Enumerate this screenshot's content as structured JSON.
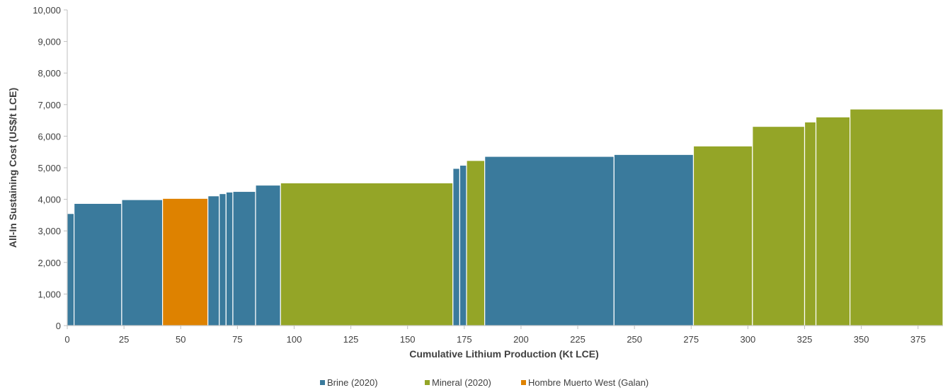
{
  "chart_data": {
    "type": "bar",
    "subtype": "cost-curve",
    "title": "",
    "xlabel": "Cumulative Lithium Production (Kt LCE)",
    "ylabel": "All-In Sustaining Cost (US$/t LCE)",
    "xlim": [
      0,
      386
    ],
    "ylim": [
      0,
      10000
    ],
    "x_ticks": [
      0,
      25,
      50,
      75,
      100,
      125,
      150,
      175,
      200,
      225,
      250,
      275,
      300,
      325,
      350,
      375
    ],
    "x_tick_labels": [
      "0",
      "25",
      "50",
      "75",
      "100",
      "125",
      "150",
      "175",
      "200",
      "225",
      "250",
      "275",
      "300",
      "325",
      "350",
      "375"
    ],
    "y_ticks": [
      0,
      1000,
      2000,
      3000,
      4000,
      5000,
      6000,
      7000,
      8000,
      9000,
      10000
    ],
    "y_tick_labels": [
      "0",
      "1,000",
      "2,000",
      "3,000",
      "4,000",
      "5,000",
      "6,000",
      "7,000",
      "8,000",
      "9,000",
      "10,000"
    ],
    "grid": false,
    "legend_position": "bottom-center",
    "series": [
      {
        "name": "Brine (2020)",
        "color": "#3a7a9c"
      },
      {
        "name": "Mineral (2020)",
        "color": "#94a527"
      },
      {
        "name": "Hombre Muerto West (Galan)",
        "color": "#de8200"
      }
    ],
    "bars": [
      {
        "series": "Brine (2020)",
        "x_start": 0,
        "x_end": 3,
        "value": 3550
      },
      {
        "series": "Brine (2020)",
        "x_start": 3,
        "x_end": 24,
        "value": 3870
      },
      {
        "series": "Brine (2020)",
        "x_start": 24,
        "x_end": 42,
        "value": 3990
      },
      {
        "series": "Hombre Muerto West (Galan)",
        "x_start": 42,
        "x_end": 62,
        "value": 4030
      },
      {
        "series": "Brine (2020)",
        "x_start": 62,
        "x_end": 67,
        "value": 4110
      },
      {
        "series": "Brine (2020)",
        "x_start": 67,
        "x_end": 70,
        "value": 4180
      },
      {
        "series": "Brine (2020)",
        "x_start": 70,
        "x_end": 73,
        "value": 4230
      },
      {
        "series": "Brine (2020)",
        "x_start": 73,
        "x_end": 83,
        "value": 4250
      },
      {
        "series": "Brine (2020)",
        "x_start": 83,
        "x_end": 94,
        "value": 4450
      },
      {
        "series": "Mineral (2020)",
        "x_start": 94,
        "x_end": 170,
        "value": 4520
      },
      {
        "series": "Brine (2020)",
        "x_start": 170,
        "x_end": 173,
        "value": 4980
      },
      {
        "series": "Brine (2020)",
        "x_start": 173,
        "x_end": 176,
        "value": 5080
      },
      {
        "series": "Mineral (2020)",
        "x_start": 176,
        "x_end": 184,
        "value": 5230
      },
      {
        "series": "Brine (2020)",
        "x_start": 184,
        "x_end": 241,
        "value": 5360
      },
      {
        "series": "Brine (2020)",
        "x_start": 241,
        "x_end": 276,
        "value": 5420
      },
      {
        "series": "Mineral (2020)",
        "x_start": 276,
        "x_end": 302,
        "value": 5690
      },
      {
        "series": "Mineral (2020)",
        "x_start": 302,
        "x_end": 325,
        "value": 6310
      },
      {
        "series": "Mineral (2020)",
        "x_start": 325,
        "x_end": 330,
        "value": 6450
      },
      {
        "series": "Mineral (2020)",
        "x_start": 330,
        "x_end": 345,
        "value": 6610
      },
      {
        "series": "Mineral (2020)",
        "x_start": 345,
        "x_end": 386,
        "value": 6860
      }
    ]
  }
}
